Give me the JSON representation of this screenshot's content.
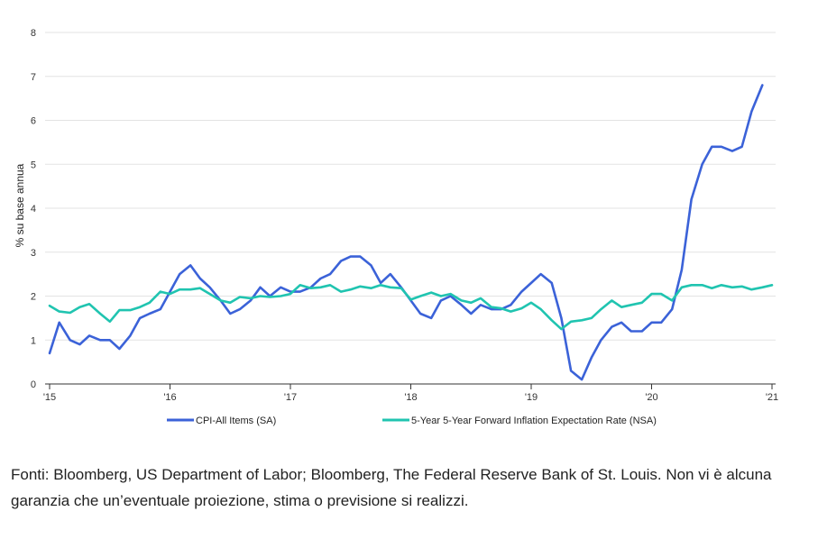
{
  "chart_data": {
    "type": "line",
    "ylabel": "% su base annua",
    "xlabel": "",
    "ylim": [
      0,
      8
    ],
    "y_ticks": [
      "0",
      "1",
      "2",
      "3",
      "4",
      "5",
      "6",
      "7",
      "8"
    ],
    "x_ticks": [
      {
        "label": "'15",
        "x": 2015.0
      },
      {
        "label": "'16",
        "x": 2016.0
      },
      {
        "label": "'17",
        "x": 2017.0
      },
      {
        "label": "'18",
        "x": 2018.0
      },
      {
        "label": "'19",
        "x": 2019.0
      },
      {
        "label": "'20",
        "x": 2020.0
      },
      {
        "label": "'21",
        "x": 2021.0
      }
    ],
    "xlim": [
      2015.0,
      2021.0
    ],
    "grid": true,
    "legend_position": "bottom",
    "series": [
      {
        "name": "CPI-All Items (SA)",
        "color": "#3b62d8",
        "x": [
          2015.0,
          2015.08,
          2015.17,
          2015.25,
          2015.33,
          2015.42,
          2015.5,
          2015.58,
          2015.67,
          2015.75,
          2015.83,
          2015.92,
          2016.0,
          2016.08,
          2016.17,
          2016.25,
          2016.33,
          2016.42,
          2016.5,
          2016.58,
          2016.67,
          2016.75,
          2016.83,
          2016.92,
          2017.0,
          2017.08,
          2017.17,
          2017.25,
          2017.33,
          2017.42,
          2017.5,
          2017.58,
          2017.67,
          2017.75,
          2017.83,
          2017.92,
          2018.0,
          2018.08,
          2018.17,
          2018.25,
          2018.33,
          2018.42,
          2018.5,
          2018.58,
          2018.67,
          2018.75,
          2018.83,
          2018.92,
          2019.0,
          2019.08,
          2019.17,
          2019.25,
          2019.33,
          2019.42,
          2019.5,
          2019.58,
          2019.67,
          2019.75,
          2019.83,
          2019.92,
          2020.0,
          2020.08,
          2020.17,
          2020.25,
          2020.33,
          2020.42,
          2020.5,
          2020.58,
          2020.67,
          2020.75,
          2020.83,
          2020.92
        ],
        "values": [
          0.7,
          1.4,
          1.0,
          0.9,
          1.1,
          1.0,
          1.0,
          0.8,
          1.1,
          1.5,
          1.6,
          1.7,
          2.1,
          2.5,
          2.7,
          2.4,
          2.2,
          1.9,
          1.6,
          1.7,
          1.9,
          2.2,
          2.0,
          2.2,
          2.1,
          2.1,
          2.2,
          2.4,
          2.5,
          2.8,
          2.9,
          2.9,
          2.7,
          2.3,
          2.5,
          2.2,
          1.9,
          1.6,
          1.5,
          1.9,
          2.0,
          1.8,
          1.6,
          1.8,
          1.7,
          1.7,
          1.8,
          2.1,
          2.3,
          2.5,
          2.3,
          1.5,
          0.3,
          0.1,
          0.6,
          1.0,
          1.3,
          1.4,
          1.2,
          1.2,
          1.4,
          1.4,
          1.7,
          2.6,
          4.2,
          5.0,
          5.4,
          5.4,
          5.3,
          5.4,
          6.2,
          6.8
        ]
      },
      {
        "name": "5-Year 5-Year Forward Inflation Expectation Rate (NSA)",
        "color": "#20c4b0",
        "x": [
          2015.0,
          2015.08,
          2015.17,
          2015.25,
          2015.33,
          2015.42,
          2015.5,
          2015.58,
          2015.67,
          2015.75,
          2015.83,
          2015.92,
          2016.0,
          2016.08,
          2016.17,
          2016.25,
          2016.33,
          2016.42,
          2016.5,
          2016.58,
          2016.67,
          2016.75,
          2016.83,
          2016.92,
          2017.0,
          2017.08,
          2017.17,
          2017.25,
          2017.33,
          2017.42,
          2017.5,
          2017.58,
          2017.67,
          2017.75,
          2017.83,
          2017.92,
          2018.0,
          2018.08,
          2018.17,
          2018.25,
          2018.33,
          2018.42,
          2018.5,
          2018.58,
          2018.67,
          2018.75,
          2018.83,
          2018.92,
          2019.0,
          2019.08,
          2019.17,
          2019.25,
          2019.33,
          2019.42,
          2019.5,
          2019.58,
          2019.67,
          2019.75,
          2019.83,
          2019.92,
          2020.0,
          2020.08,
          2020.17,
          2020.25,
          2020.33,
          2020.42,
          2020.5,
          2020.58,
          2020.67,
          2020.75,
          2020.83,
          2020.92,
          2021.0
        ],
        "values": [
          1.78,
          1.65,
          1.62,
          1.75,
          1.82,
          1.6,
          1.42,
          1.68,
          1.68,
          1.75,
          1.85,
          2.1,
          2.05,
          2.15,
          2.15,
          2.18,
          2.05,
          1.9,
          1.85,
          1.98,
          1.95,
          2.0,
          1.98,
          2.0,
          2.05,
          2.25,
          2.18,
          2.2,
          2.25,
          2.1,
          2.15,
          2.22,
          2.18,
          2.25,
          2.2,
          2.18,
          1.92,
          2.0,
          2.08,
          2.0,
          2.05,
          1.9,
          1.85,
          1.95,
          1.75,
          1.72,
          1.65,
          1.72,
          1.85,
          1.7,
          1.45,
          1.25,
          1.42,
          1.45,
          1.5,
          1.7,
          1.9,
          1.75,
          1.8,
          1.85,
          2.05,
          2.05,
          1.9,
          2.2,
          2.25,
          2.25,
          2.18,
          2.25,
          2.2,
          2.22,
          2.15,
          2.2,
          2.25
        ]
      }
    ]
  },
  "source_note": "Fonti: Bloomberg, US Department of Labor; Bloomberg, The Federal Reserve Bank of St. Louis. Non vi è alcuna garanzia che un’eventuale proiezione, stima o previsione si realizzi."
}
